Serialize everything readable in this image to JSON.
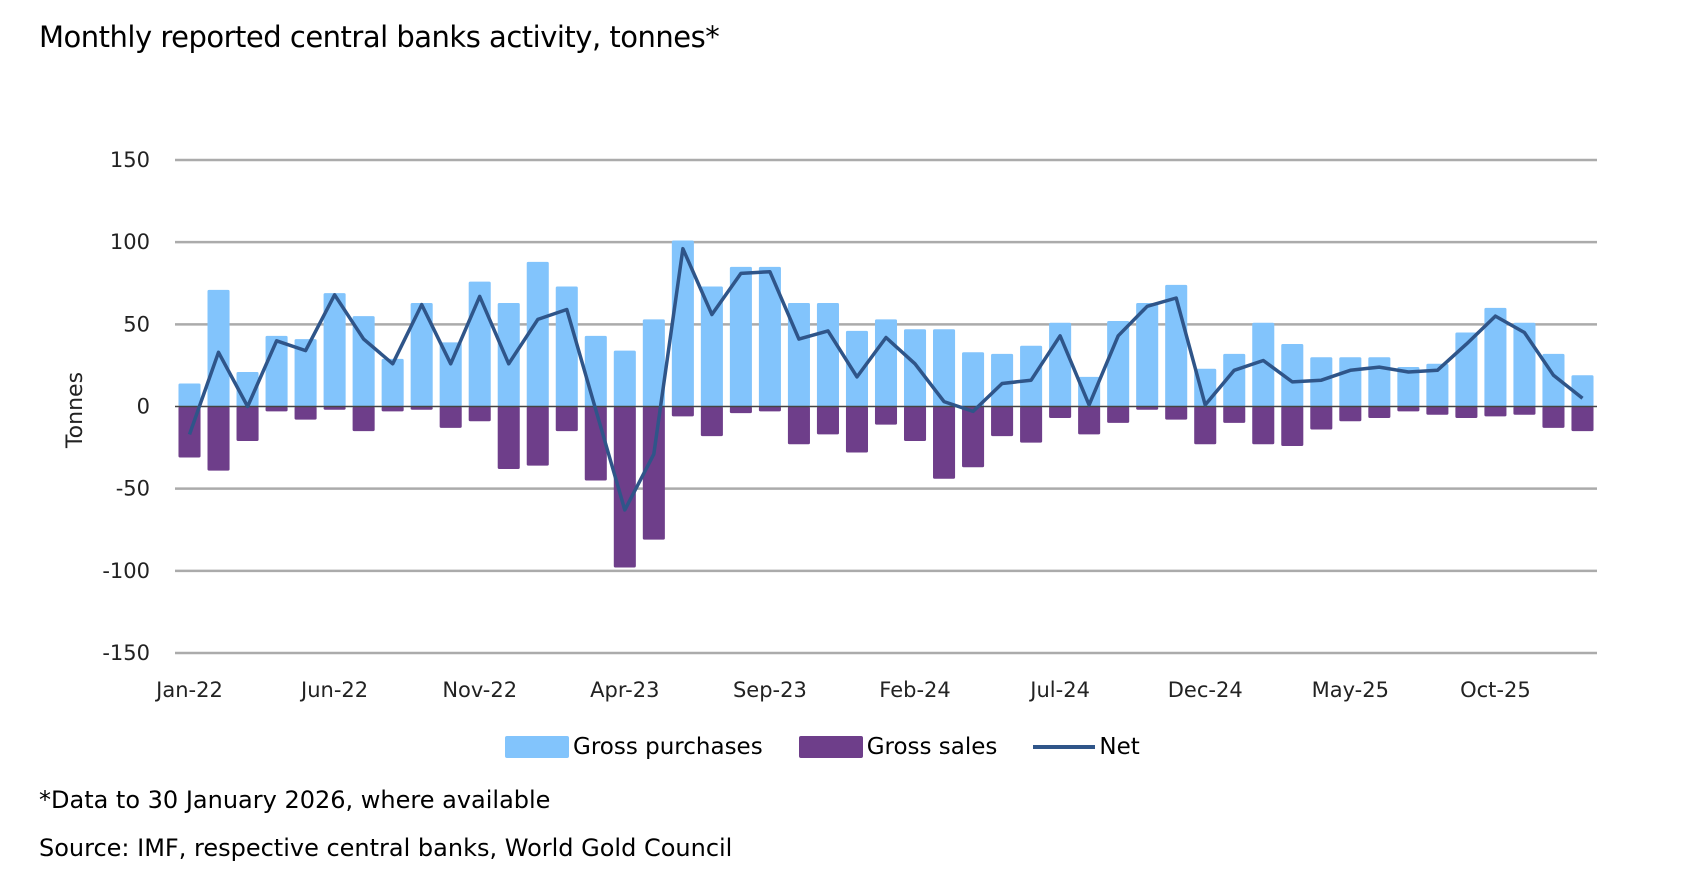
{
  "title": "Monthly reported central banks activity, tonnes*",
  "footnote": "*Data to 30 January 2026, where available",
  "source": "Source: IMF, respective central banks, World Gold Council",
  "chart_data": {
    "type": "bar",
    "stacked": true,
    "title": "Monthly reported central banks activity, tonnes*",
    "ylabel": "Tonnes",
    "xlabel": "",
    "ylim": [
      -150,
      150
    ],
    "yticks": [
      150,
      100,
      50,
      0,
      -50,
      -100,
      -150
    ],
    "grid": true,
    "legend_position": "bottom",
    "categories": [
      "Jan-22",
      "Feb-22",
      "Mar-22",
      "Apr-22",
      "May-22",
      "Jun-22",
      "Jul-22",
      "Aug-22",
      "Sep-22",
      "Oct-22",
      "Nov-22",
      "Dec-22",
      "Jan-23",
      "Feb-23",
      "Mar-23",
      "Apr-23",
      "May-23",
      "Jun-23",
      "Jul-23",
      "Aug-23",
      "Sep-23",
      "Oct-23",
      "Nov-23",
      "Dec-23",
      "Jan-24",
      "Feb-24",
      "Mar-24",
      "Apr-24",
      "May-24",
      "Jun-24",
      "Jul-24",
      "Aug-24",
      "Sep-24",
      "Oct-24",
      "Nov-24",
      "Dec-24",
      "Jan-25",
      "Feb-25",
      "Mar-25",
      "Apr-25",
      "May-25",
      "Jun-25",
      "Jul-25",
      "Aug-25",
      "Sep-25",
      "Oct-25",
      "Nov-25",
      "Dec-25",
      "Jan-26"
    ],
    "xtick_labels": [
      "Jan-22",
      "Jun-22",
      "Nov-22",
      "Apr-23",
      "Sep-23",
      "Feb-24",
      "Jul-24",
      "Dec-24",
      "May-25",
      "Oct-25"
    ],
    "series": [
      {
        "name": "Gross purchases",
        "type": "bar",
        "color": "#82C4FC",
        "values": [
          14,
          71,
          21,
          43,
          41,
          69,
          55,
          29,
          63,
          39,
          76,
          63,
          88,
          73,
          43,
          34,
          53,
          101,
          73,
          85,
          85,
          63,
          63,
          46,
          53,
          47,
          47,
          33,
          32,
          37,
          51,
          18,
          52,
          63,
          74,
          23,
          32,
          51,
          38,
          30,
          30,
          30,
          24,
          26,
          45,
          60,
          51,
          32,
          19
        ]
      },
      {
        "name": "Gross sales",
        "type": "bar",
        "color": "#6E3E8A",
        "values": [
          -31,
          -39,
          -21,
          -3,
          -8,
          -2,
          -15,
          -3,
          -2,
          -13,
          -9,
          -38,
          -36,
          -15,
          -45,
          -98,
          -81,
          -6,
          -18,
          -4,
          -3,
          -23,
          -17,
          -28,
          -11,
          -21,
          -44,
          -37,
          -18,
          -22,
          -7,
          -17,
          -10,
          -2,
          -8,
          -23,
          -10,
          -23,
          -24,
          -14,
          -9,
          -7,
          -3,
          -5,
          -7,
          -6,
          -5,
          -13,
          -15
        ]
      },
      {
        "name": "Net",
        "type": "line",
        "color": "#2F5589",
        "values": [
          -17,
          33,
          0,
          40,
          34,
          68,
          41,
          26,
          62,
          26,
          67,
          26,
          53,
          59,
          -2,
          -63,
          -29,
          96,
          56,
          81,
          82,
          41,
          46,
          18,
          42,
          26,
          3,
          -3,
          14,
          16,
          43,
          1,
          43,
          61,
          66,
          1,
          22,
          28,
          15,
          16,
          22,
          24,
          21,
          22,
          38,
          55,
          45,
          19,
          5
        ]
      }
    ]
  }
}
